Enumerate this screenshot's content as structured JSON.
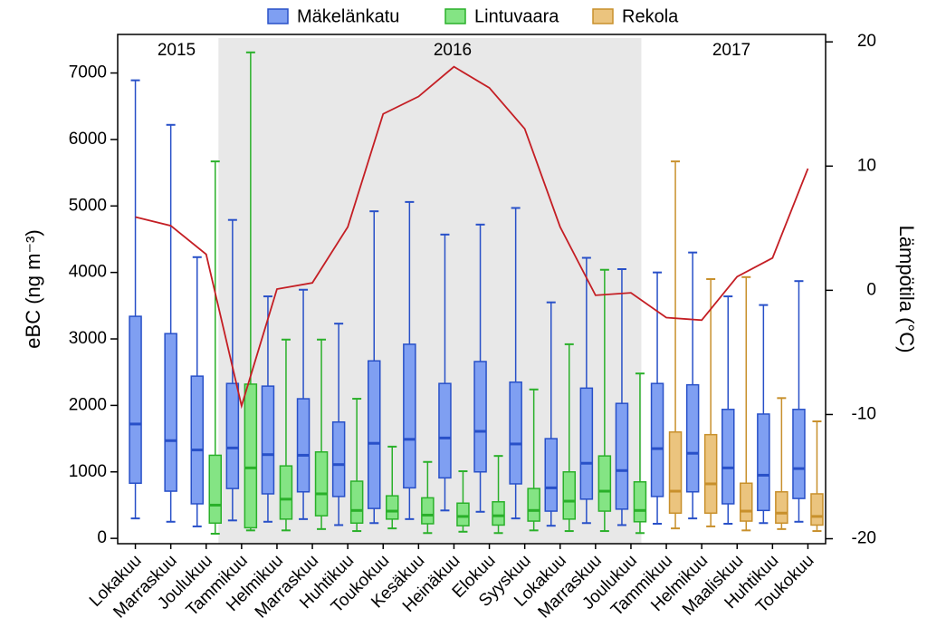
{
  "chart_data": {
    "type": "box",
    "categories": [
      "Lokakuu",
      "Marraskuu",
      "Joulukuu",
      "Tammikuu",
      "Helmikuu",
      "Marraskuu",
      "Huhtikuu",
      "Toukokuu",
      "Kesäkuu",
      "Heinäkuu",
      "Elokuu",
      "Syyskuu",
      "Lokakuu",
      "Marraskuu",
      "Joulukuu",
      "Tammikuu",
      "Helmikuu",
      "Maaliskuu",
      "Huhtikuu",
      "Toukokuu"
    ],
    "y_label": "eBC (ng m⁻³)",
    "y2_label": "Lämpötila (°C)",
    "annotations": [
      {
        "text": "2015"
      },
      {
        "text": "2016"
      },
      {
        "text": "2017"
      }
    ],
    "ylim": [
      -80,
      7580
    ],
    "yticks": [
      0,
      1000,
      2000,
      3000,
      4000,
      5000,
      6000,
      7000
    ],
    "y2lim": [
      -20.4,
      20.6
    ],
    "y2ticks": [
      -20,
      -10,
      0,
      10,
      20
    ],
    "series": [
      {
        "name": "Mäkelänkatu",
        "color": "#2850c8",
        "fill": "#7f9ff2",
        "values": [
          {
            "min": 300,
            "q1": 830,
            "median": 1720,
            "q3": 3340,
            "max": 6890
          },
          {
            "min": 250,
            "q1": 710,
            "median": 1470,
            "q3": 3080,
            "max": 6220
          },
          {
            "min": 180,
            "q1": 520,
            "median": 1330,
            "q3": 2440,
            "max": 4230
          },
          {
            "min": 270,
            "q1": 750,
            "median": 1360,
            "q3": 2330,
            "max": 4790
          },
          {
            "min": 250,
            "q1": 670,
            "median": 1260,
            "q3": 2290,
            "max": 3640
          },
          {
            "min": 290,
            "q1": 700,
            "median": 1250,
            "q3": 2100,
            "max": 3740
          },
          {
            "min": 200,
            "q1": 630,
            "median": 1110,
            "q3": 1750,
            "max": 3230
          },
          {
            "min": 230,
            "q1": 450,
            "median": 1430,
            "q3": 2670,
            "max": 4920
          },
          {
            "min": 290,
            "q1": 760,
            "median": 1490,
            "q3": 2920,
            "max": 5060
          },
          {
            "min": 420,
            "q1": 910,
            "median": 1510,
            "q3": 2330,
            "max": 4570
          },
          {
            "min": 400,
            "q1": 1000,
            "median": 1610,
            "q3": 2660,
            "max": 4720
          },
          {
            "min": 300,
            "q1": 820,
            "median": 1420,
            "q3": 2350,
            "max": 4970
          },
          {
            "min": 190,
            "q1": 410,
            "median": 760,
            "q3": 1500,
            "max": 3550
          },
          {
            "min": 230,
            "q1": 590,
            "median": 1130,
            "q3": 2260,
            "max": 4220
          },
          {
            "min": 200,
            "q1": 440,
            "median": 1020,
            "q3": 2030,
            "max": 4050
          },
          {
            "min": 220,
            "q1": 630,
            "median": 1350,
            "q3": 2330,
            "max": 4000
          },
          {
            "min": 300,
            "q1": 700,
            "median": 1280,
            "q3": 2310,
            "max": 4300
          },
          {
            "min": 220,
            "q1": 520,
            "median": 1060,
            "q3": 1940,
            "max": 3640
          },
          {
            "min": 230,
            "q1": 420,
            "median": 950,
            "q3": 1870,
            "max": 3510
          },
          {
            "min": 250,
            "q1": 600,
            "median": 1050,
            "q3": 1940,
            "max": 3870
          }
        ]
      },
      {
        "name": "Lintuvaara",
        "color": "#2ab02a",
        "fill": "#84e484",
        "values": [
          null,
          null,
          {
            "min": 70,
            "q1": 230,
            "median": 500,
            "q3": 1250,
            "max": 5670
          },
          {
            "min": 120,
            "q1": 160,
            "median": 1060,
            "q3": 2320,
            "max": 7310
          },
          {
            "min": 120,
            "q1": 290,
            "median": 590,
            "q3": 1090,
            "max": 2990
          },
          {
            "min": 140,
            "q1": 340,
            "median": 670,
            "q3": 1300,
            "max": 2990
          },
          {
            "min": 110,
            "q1": 230,
            "median": 420,
            "q3": 860,
            "max": 2100
          },
          {
            "min": 150,
            "q1": 290,
            "median": 410,
            "q3": 640,
            "max": 1380
          },
          {
            "min": 80,
            "q1": 220,
            "median": 350,
            "q3": 610,
            "max": 1150
          },
          {
            "min": 100,
            "q1": 190,
            "median": 330,
            "q3": 530,
            "max": 1010
          },
          {
            "min": 80,
            "q1": 200,
            "median": 340,
            "q3": 550,
            "max": 1240
          },
          {
            "min": 120,
            "q1": 260,
            "median": 420,
            "q3": 750,
            "max": 2240
          },
          {
            "min": 110,
            "q1": 290,
            "median": 560,
            "q3": 1000,
            "max": 2920
          },
          {
            "min": 110,
            "q1": 410,
            "median": 710,
            "q3": 1240,
            "max": 4040
          },
          {
            "min": 80,
            "q1": 250,
            "median": 420,
            "q3": 850,
            "max": 2480
          },
          null,
          null,
          null,
          null,
          null
        ]
      },
      {
        "name": "Rekola",
        "color": "#c8902c",
        "fill": "#ebc47e",
        "values": [
          null,
          null,
          null,
          null,
          null,
          null,
          null,
          null,
          null,
          null,
          null,
          null,
          null,
          null,
          null,
          {
            "min": 150,
            "q1": 380,
            "median": 710,
            "q3": 1600,
            "max": 5670
          },
          {
            "min": 180,
            "q1": 380,
            "median": 820,
            "q3": 1560,
            "max": 3900
          },
          {
            "min": 120,
            "q1": 260,
            "median": 410,
            "q3": 830,
            "max": 3930
          },
          {
            "min": 140,
            "q1": 230,
            "median": 380,
            "q3": 700,
            "max": 2110
          },
          {
            "min": 110,
            "q1": 200,
            "median": 330,
            "q3": 670,
            "max": 1760
          }
        ]
      }
    ],
    "line": {
      "axis": "y2",
      "color": "#c41e24",
      "values": [
        5.9,
        5.2,
        2.9,
        -9.3,
        0.1,
        0.6,
        5.1,
        14.2,
        15.6,
        18.0,
        16.3,
        13.0,
        5.1,
        -0.4,
        -0.2,
        -2.2,
        -2.4,
        1.1,
        2.6,
        9.8
      ]
    }
  }
}
